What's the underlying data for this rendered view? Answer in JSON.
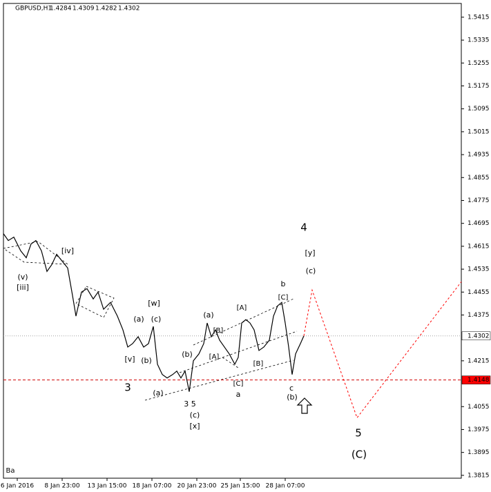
{
  "chart_data": {
    "type": "line",
    "symbol": "GBPUSD,H1",
    "ohlc": [
      1.4284,
      1.4309,
      1.4282,
      1.4302
    ],
    "xlim": [
      0,
      663
    ],
    "xticks": [
      {
        "value": 20,
        "label": "6 Jan 2016"
      },
      {
        "value": 85,
        "label": "8 Jan 23:00"
      },
      {
        "value": 150,
        "label": "13 Jan 15:00"
      },
      {
        "value": 215,
        "label": "18 Jan 07:00"
      },
      {
        "value": 280,
        "label": "20 Jan 23:00"
      },
      {
        "value": 343,
        "label": "25 Jan 15:00"
      },
      {
        "value": 408,
        "label": "28 Jan 07:00"
      }
    ],
    "ylim": [
      1.3805,
      1.5463
    ],
    "yticks": [
      1.5415,
      1.5335,
      1.5255,
      1.5175,
      1.5095,
      1.5015,
      1.4935,
      1.4855,
      1.4775,
      1.4695,
      1.4615,
      1.4535,
      1.4455,
      1.4375,
      1.4215,
      1.4055,
      1.3975,
      1.3895,
      1.3815
    ],
    "series": [
      {
        "color": "#000000",
        "dashed": false,
        "x": [
          0,
          7,
          15,
          25,
          33,
          40,
          47,
          55,
          63,
          70,
          77,
          85,
          93,
          100,
          105,
          113,
          121,
          130,
          137,
          145,
          155,
          165,
          173,
          180,
          187,
          195,
          203,
          210,
          217,
          223,
          230,
          237,
          245,
          251,
          257,
          263,
          269,
          275,
          283,
          290,
          295,
          301,
          307,
          313,
          320,
          327,
          335,
          340,
          345,
          351,
          357,
          363,
          370,
          377,
          385,
          391,
          397,
          403,
          408,
          413,
          418,
          423,
          430,
          435
        ],
        "values": [
          1.4659,
          1.4635,
          1.4647,
          1.4599,
          1.4575,
          1.4623,
          1.4635,
          1.4599,
          1.4527,
          1.4551,
          1.4587,
          1.4563,
          1.4539,
          1.4443,
          1.4371,
          1.4455,
          1.4467,
          1.4431,
          1.4455,
          1.4395,
          1.4419,
          1.4371,
          1.4323,
          1.4263,
          1.4275,
          1.4299,
          1.4263,
          1.4275,
          1.4335,
          1.4203,
          1.4167,
          1.4155,
          1.4167,
          1.4179,
          1.4155,
          1.4179,
          1.4107,
          1.4215,
          1.4239,
          1.4275,
          1.4347,
          1.4299,
          1.4323,
          1.4287,
          1.4263,
          1.4239,
          1.4203,
          1.4227,
          1.4347,
          1.4359,
          1.4347,
          1.4323,
          1.4251,
          1.4263,
          1.4287,
          1.4371,
          1.4407,
          1.4419,
          1.4347,
          1.4263,
          1.4167,
          1.4239,
          1.4275,
          1.4302
        ]
      },
      {
        "color": "#ff0000",
        "dashed": true,
        "x": [
          435,
          447,
          512,
          663
        ],
        "values": [
          1.4302,
          1.4462,
          1.4016,
          1.4491
        ]
      }
    ],
    "price_lines": [
      {
        "value": 1.4302,
        "color": "#a0a0a0",
        "text_color": "#000000",
        "box": "#ffffff"
      },
      {
        "value": 1.4148,
        "color": "#d00000",
        "text_color": "#ffffff",
        "box": "#ff0000"
      }
    ],
    "annotations": [
      {
        "text": "4",
        "color": "#1a1adc"
      },
      {
        "text": "[y]",
        "color": "#e00000"
      },
      {
        "text": "(c)",
        "color": "#1e8c1e"
      },
      {
        "text": "b",
        "color": "#1a1adc"
      },
      {
        "text": "[C]",
        "color": "#e00000"
      },
      {
        "text": "[A]",
        "color": "#e00000"
      },
      {
        "text": "(a)",
        "color": "#1e8c1e"
      },
      {
        "text": "[B]",
        "color": "#e00000"
      },
      {
        "text": "[A]",
        "color": "#e00000"
      },
      {
        "text": "[B]",
        "color": "#e00000"
      },
      {
        "text": "[C]",
        "color": "#e00000"
      },
      {
        "text": "a",
        "color": "#1a1adc"
      },
      {
        "text": "c",
        "color": "#1a1adc"
      },
      {
        "text": "(b)",
        "color": "#1e8c1e"
      },
      {
        "text": "[w]",
        "color": "#e00000"
      },
      {
        "text": "(a)",
        "color": "#1e8c1e"
      },
      {
        "text": "(c)",
        "color": "#1e8c1e"
      },
      {
        "text": "[v]",
        "color": "#e00000"
      },
      {
        "text": "(b)",
        "color": "#1e8c1e"
      },
      {
        "text": "(b)",
        "color": "#1e8c1e"
      },
      {
        "text": "3",
        "color": "#1a1adc"
      },
      {
        "text": "(a)",
        "color": "#1e8c1e"
      },
      {
        "text": "3 5",
        "color": "#1a1adc"
      },
      {
        "text": "(c)",
        "color": "#1e8c1e"
      },
      {
        "text": "[x]",
        "color": "#e00000"
      },
      {
        "text": "[iv]",
        "color": "#e00000"
      },
      {
        "text": "(v)",
        "color": "#1e8c1e"
      },
      {
        "text": "[iii]",
        "color": "#e00000"
      },
      {
        "text": "5",
        "color": "#1a1adc"
      },
      {
        "text": "(C)",
        "color": "#1e8c1e"
      },
      {
        "text": "Ba",
        "color": "#1a1adc"
      }
    ]
  }
}
